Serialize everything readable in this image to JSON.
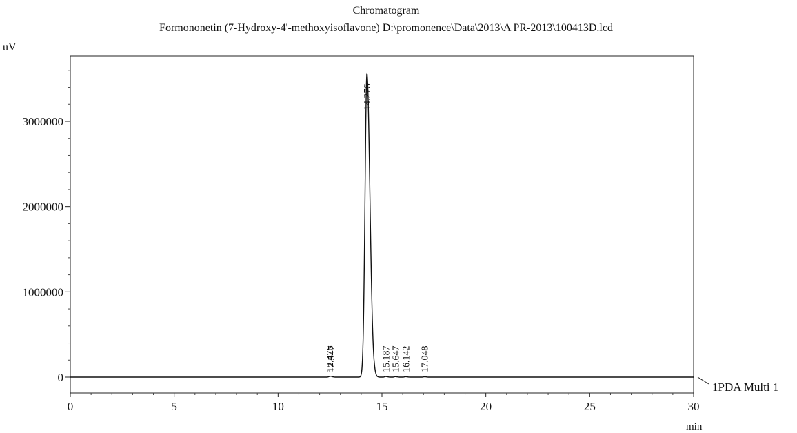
{
  "chart_data": {
    "type": "line",
    "title": "Chromatogram",
    "subtitle": "Formononetin (7-Hydroxy-4'-methoxyisoflavone) D:\\promonence\\Data\\2013\\A PR-2013\\100413D.lcd",
    "ylabel": "uV",
    "xlabel": "min",
    "xlim": [
      0,
      30
    ],
    "ylim": [
      -200000,
      3800000
    ],
    "x_ticks": [
      0,
      5,
      10,
      15,
      20,
      25,
      30
    ],
    "x_tick_labels": [
      "0",
      "5",
      "10",
      "15",
      "20",
      "25",
      "30"
    ],
    "y_ticks": [
      0,
      1000000,
      2000000,
      3000000
    ],
    "y_tick_labels": [
      "0",
      "1000000",
      "2000000",
      "3000000"
    ],
    "grid": false,
    "series": [
      {
        "name": "1PDA Multi 1",
        "peaks": [
          {
            "rt": 12.476,
            "height": 6000
          },
          {
            "rt": 12.547,
            "height": 6000
          },
          {
            "rt": 14.276,
            "height": 3560000,
            "width": 0.09
          },
          {
            "rt": 15.187,
            "height": 7000
          },
          {
            "rt": 15.647,
            "height": 6000
          },
          {
            "rt": 16.142,
            "height": 5000
          },
          {
            "rt": 17.048,
            "height": 4000
          }
        ]
      }
    ],
    "peak_labels": [
      {
        "x": 12.476,
        "label": "12.476"
      },
      {
        "x": 12.547,
        "label": "12.547"
      },
      {
        "x": 14.276,
        "label": "14.276"
      },
      {
        "x": 15.187,
        "label": "15.187"
      },
      {
        "x": 15.647,
        "label": "15.647"
      },
      {
        "x": 16.142,
        "label": "16.142"
      },
      {
        "x": 17.048,
        "label": "17.048"
      }
    ]
  }
}
